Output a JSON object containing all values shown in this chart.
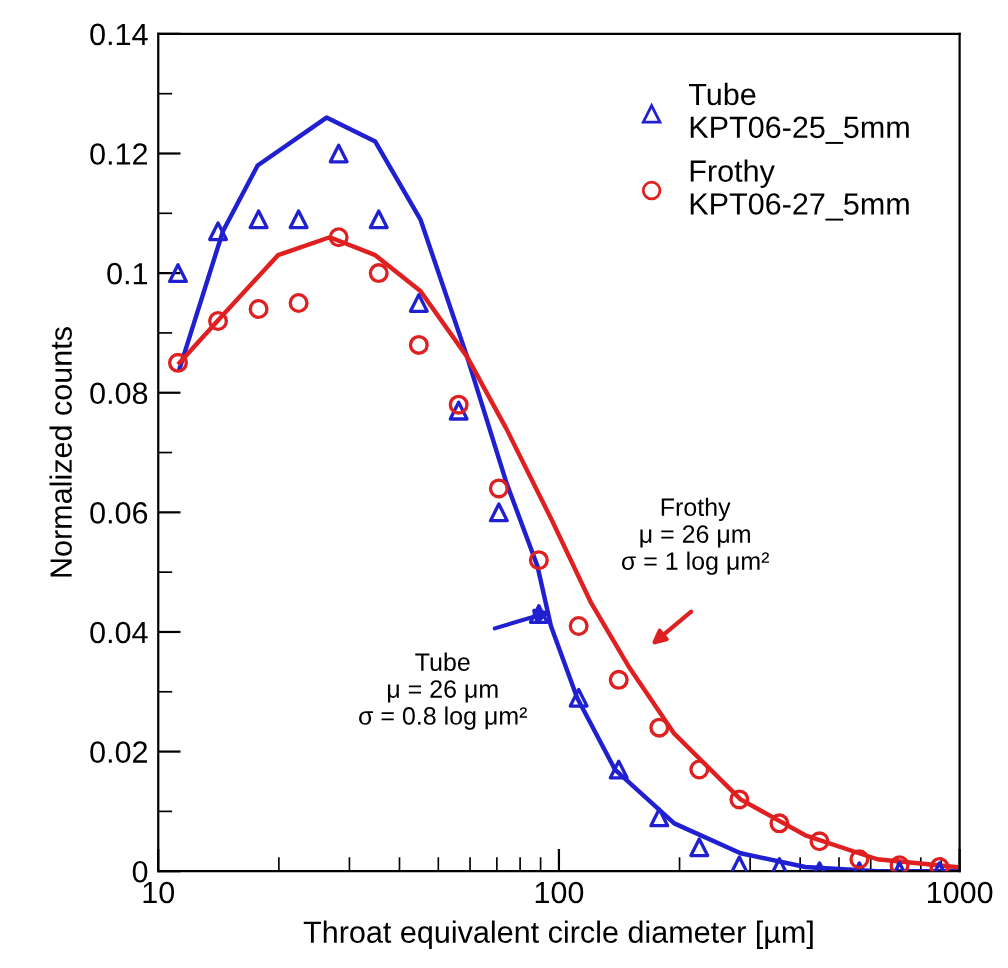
{
  "chart_data": {
    "type": "scatter",
    "xlabel": "Throat equivalent circle diameter [µm]",
    "ylabel": "Normalized counts",
    "log": "x",
    "xlim": [
      10,
      1000
    ],
    "xticks": [
      10,
      100,
      1000
    ],
    "ylim": [
      0,
      0.14
    ],
    "yticks": [
      0,
      0.02,
      0.04,
      0.06,
      0.08,
      0.1,
      0.12,
      0.14
    ],
    "grid": false,
    "legend": "top right",
    "series": [
      {
        "name": "Tube\nKPT06-25_5mm",
        "marker": "triangle",
        "color": "#2020d0",
        "x": [
          11.2,
          14.1,
          17.8,
          22.4,
          28.2,
          35.5,
          44.7,
          56.2,
          70.8,
          89.1,
          112,
          141,
          178,
          224,
          282,
          355,
          447,
          562,
          708,
          891
        ],
        "values": [
          0.1,
          0.107,
          0.109,
          0.109,
          0.12,
          0.109,
          0.095,
          0.077,
          0.06,
          0.043,
          0.029,
          0.017,
          0.009,
          0.004,
          0.001,
          0.0007,
          0,
          0,
          0,
          0
        ]
      },
      {
        "name": "Frothy\nKPT06-27_5mm",
        "marker": "circle",
        "color": "#e02020",
        "x": [
          11.2,
          14.1,
          17.8,
          22.4,
          28.2,
          35.5,
          44.7,
          56.2,
          70.8,
          89.1,
          112,
          141,
          178,
          224,
          282,
          355,
          447,
          562,
          708,
          891
        ],
        "values": [
          0.085,
          0.092,
          0.094,
          0.095,
          0.106,
          0.1,
          0.088,
          0.078,
          0.064,
          0.052,
          0.041,
          0.032,
          0.024,
          0.017,
          0.012,
          0.008,
          0.005,
          0.002,
          0.001,
          0.0007
        ]
      },
      {
        "type": "line",
        "color": "#2020d0",
        "x": [
          11.3,
          14.5,
          17.7,
          26.3,
          34.8,
          45.1,
          59,
          73.9,
          88.4,
          95.5,
          111,
          138,
          194,
          284,
          412,
          623,
          1000
        ],
        "values": [
          0.084,
          0.107,
          0.118,
          0.126,
          0.122,
          0.109,
          0.086,
          0.065,
          0.051,
          0.041,
          0.029,
          0.017,
          0.008,
          0.003,
          0.0007,
          0,
          0
        ]
      },
      {
        "type": "line",
        "color": "#e02020",
        "x": [
          11.3,
          14.5,
          19.9,
          26.8,
          34.8,
          45.1,
          59,
          73.9,
          95.5,
          120,
          150,
          194,
          284,
          412,
          623,
          980
        ],
        "values": [
          0.085,
          0.093,
          0.103,
          0.106,
          0.103,
          0.097,
          0.086,
          0.074,
          0.059,
          0.045,
          0.034,
          0.023,
          0.012,
          0.006,
          0.002,
          0.0007
        ]
      }
    ],
    "annotations": [
      "Tube\nμ = 26 μm\nσ = 0.8 log μm²",
      "Frothy\nμ = 26 μm\nσ = 1 log μm²"
    ]
  }
}
